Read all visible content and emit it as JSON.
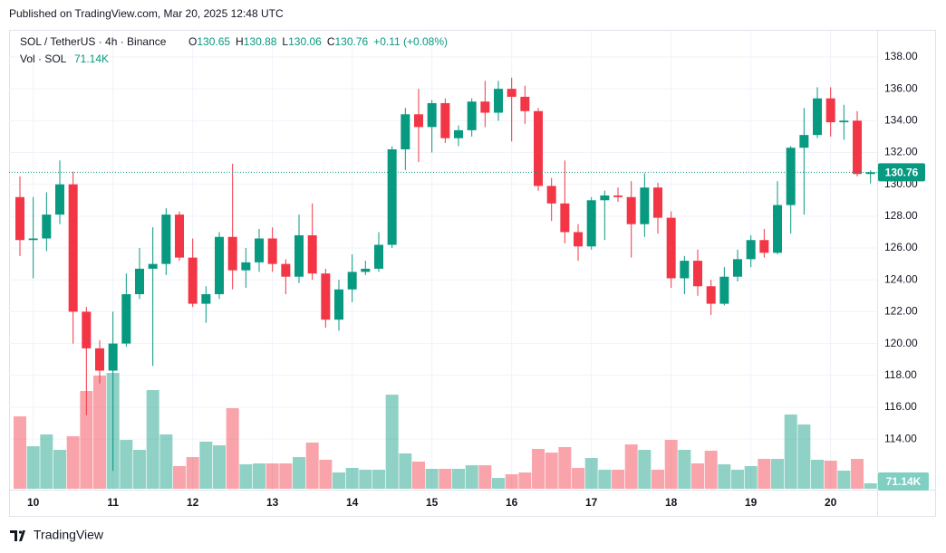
{
  "header": "Published on TradingView.com, Mar 20, 2025 12:48 UTC",
  "footer": "TradingView",
  "legend": {
    "symbol": "SOL / TetherUS · 4h · Binance",
    "ohlc": [
      {
        "key": "O",
        "value": "130.65"
      },
      {
        "key": "H",
        "value": "130.88"
      },
      {
        "key": "L",
        "value": "130.06"
      },
      {
        "key": "C",
        "value": "130.76"
      }
    ],
    "change": "+0.11 (+0.08%)",
    "volume_title": "Vol · SOL",
    "volume_value": "71.14K"
  },
  "chart_data": {
    "type": "candlestick",
    "categories": [
      null,
      "10",
      null,
      null,
      null,
      null,
      null,
      "11",
      null,
      null,
      null,
      null,
      null,
      "12",
      null,
      null,
      null,
      null,
      null,
      "13",
      null,
      null,
      null,
      null,
      null,
      "14",
      null,
      null,
      null,
      null,
      null,
      "15",
      null,
      null,
      null,
      null,
      null,
      "16",
      null,
      null,
      null,
      null,
      null,
      "17",
      null,
      null,
      null,
      null,
      null,
      "18",
      null,
      null,
      null,
      null,
      null,
      "19",
      null,
      null,
      null,
      null,
      null,
      "20",
      null,
      null,
      null
    ],
    "open": [
      129.2,
      126.5,
      126.6,
      128.1,
      130.0,
      122.0,
      119.7,
      118.3,
      120.0,
      123.1,
      124.7,
      125.0,
      128.1,
      125.4,
      122.5,
      123.1,
      126.7,
      124.6,
      125.1,
      126.6,
      125.0,
      124.2,
      126.8,
      124.4,
      121.5,
      123.4,
      124.5,
      124.7,
      126.2,
      132.2,
      134.4,
      133.6,
      135.1,
      132.9,
      133.4,
      135.2,
      134.5,
      136.0,
      135.5,
      134.6,
      129.9,
      128.8,
      127.0,
      126.1,
      129.0,
      129.3,
      129.2,
      127.5,
      129.8,
      127.9,
      124.1,
      125.2,
      123.6,
      122.5,
      124.2,
      125.3,
      126.5,
      125.7,
      128.7,
      132.3,
      133.1,
      135.4,
      133.9,
      134.0,
      130.65
    ],
    "high": [
      130.5,
      129.2,
      129.5,
      131.5,
      130.8,
      122.3,
      120.2,
      122.0,
      124.4,
      126.0,
      127.3,
      128.5,
      128.3,
      126.6,
      123.6,
      127.0,
      131.3,
      126.0,
      127.2,
      127.3,
      125.3,
      128.1,
      128.8,
      124.7,
      124.0,
      125.6,
      125.2,
      127.0,
      132.4,
      134.8,
      136.0,
      135.3,
      135.4,
      133.7,
      135.4,
      136.5,
      136.5,
      136.7,
      136.2,
      134.8,
      130.4,
      131.5,
      127.5,
      129.2,
      129.6,
      129.8,
      130.2,
      130.7,
      130.1,
      128.3,
      125.5,
      125.9,
      124.0,
      124.8,
      125.9,
      126.8,
      127.2,
      130.2,
      132.4,
      134.8,
      136.1,
      136.1,
      135.0,
      134.6,
      130.88
    ],
    "low": [
      125.5,
      124.1,
      125.8,
      127.5,
      120.0,
      115.5,
      117.5,
      112.0,
      119.8,
      122.8,
      118.6,
      124.3,
      125.2,
      122.3,
      121.3,
      122.8,
      123.4,
      123.5,
      124.5,
      124.5,
      123.1,
      123.8,
      124.0,
      121.0,
      120.8,
      122.6,
      124.3,
      124.5,
      126.0,
      130.9,
      131.4,
      132.0,
      132.6,
      132.4,
      133.0,
      133.6,
      134.0,
      132.7,
      133.8,
      129.6,
      127.7,
      126.3,
      125.2,
      125.9,
      126.5,
      128.9,
      125.4,
      126.7,
      126.9,
      123.5,
      123.1,
      123.0,
      121.8,
      122.4,
      123.9,
      124.8,
      125.4,
      125.6,
      126.9,
      128.1,
      132.9,
      133.0,
      132.8,
      130.5,
      130.06
    ],
    "close": [
      126.5,
      126.6,
      128.1,
      130.0,
      122.0,
      119.7,
      118.3,
      120.0,
      123.1,
      124.7,
      125.0,
      128.1,
      125.4,
      122.5,
      123.1,
      126.7,
      124.6,
      125.1,
      126.6,
      125.0,
      124.2,
      126.8,
      124.4,
      121.5,
      123.4,
      124.5,
      124.7,
      126.2,
      132.2,
      134.4,
      133.6,
      135.1,
      132.9,
      133.4,
      135.2,
      134.5,
      136.0,
      135.5,
      134.6,
      129.9,
      128.8,
      127.0,
      126.1,
      129.0,
      129.3,
      129.2,
      127.5,
      129.8,
      127.9,
      124.1,
      125.2,
      123.6,
      122.5,
      124.2,
      125.3,
      126.5,
      125.7,
      128.7,
      132.3,
      133.1,
      135.4,
      133.9,
      134.0,
      130.65,
      130.76
    ],
    "volume": [
      949,
      557,
      712,
      510,
      688,
      1281,
      1483,
      1518,
      640,
      510,
      1293,
      712,
      297,
      415,
      617,
      569,
      1056,
      320,
      332,
      332,
      332,
      415,
      605,
      380,
      213,
      273,
      249,
      249,
      1233,
      463,
      356,
      261,
      261,
      261,
      308,
      308,
      142,
      190,
      213,
      522,
      474,
      546,
      273,
      403,
      249,
      249,
      581,
      510,
      249,
      640,
      510,
      332,
      498,
      320,
      249,
      297,
      391,
      391,
      973,
      842,
      380,
      368,
      237,
      391,
      71.14
    ],
    "price_label": "130.76",
    "volume_label": "71.14K",
    "ylim": [
      110.88,
      139.59
    ],
    "yticks": [
      {
        "value": 114,
        "label": "114.00"
      },
      {
        "value": 116,
        "label": "116.00"
      },
      {
        "value": 118,
        "label": "118.00"
      },
      {
        "value": 120,
        "label": "120.00"
      },
      {
        "value": 122,
        "label": "122.00"
      },
      {
        "value": 124,
        "label": "124.00"
      },
      {
        "value": 126,
        "label": "126.00"
      },
      {
        "value": 128,
        "label": "128.00"
      },
      {
        "value": 130,
        "label": "130.00"
      },
      {
        "value": 132,
        "label": "132.00"
      },
      {
        "value": 134,
        "label": "134.00"
      },
      {
        "value": 136,
        "label": "136.00"
      },
      {
        "value": 138,
        "label": "138.00"
      }
    ],
    "y2lim": [
      0,
      1898
    ],
    "grid": true,
    "up_color": "#089981",
    "down_color": "#f23645"
  }
}
